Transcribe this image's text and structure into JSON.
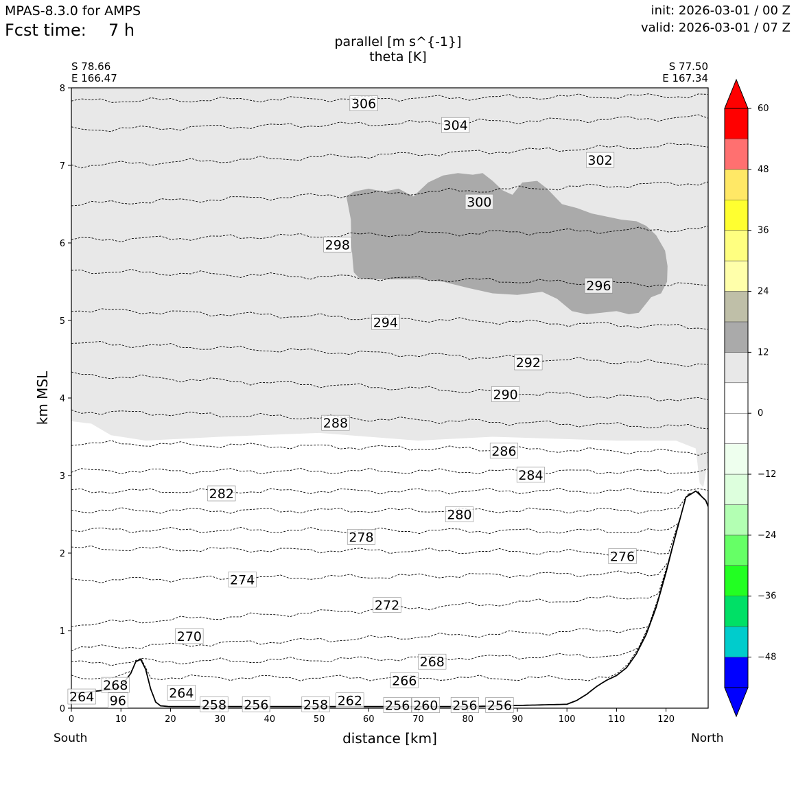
{
  "header": {
    "model": "MPAS-8.3.0 for AMPS",
    "fcst_label": "Fcst time:",
    "fcst_value": "7 h",
    "init": "init: 2026-03-01 / 00 Z",
    "valid": "valid: 2026-03-01 / 07 Z"
  },
  "endpoints": {
    "left_lat": "S 78.66",
    "left_lon": "E 166.47",
    "right_lat": "S 77.50",
    "right_lon": "E 167.34",
    "left_dir": "South",
    "right_dir": "North"
  },
  "chart_data": {
    "type": "cross-section",
    "title": "parallel [m s^{-1}]",
    "subtitle": "theta [K]",
    "xlabel": "distance [km]",
    "ylabel": "km MSL",
    "xlim": [
      0,
      128.5
    ],
    "ylim": [
      0,
      8
    ],
    "xticks": [
      0,
      10,
      20,
      30,
      40,
      50,
      60,
      70,
      80,
      90,
      100,
      110,
      120
    ],
    "yticks": [
      0,
      1,
      2,
      3,
      4,
      5,
      6,
      7,
      8
    ],
    "colorbar": {
      "levels": [
        -54,
        -48,
        -42,
        -36,
        -30,
        -24,
        -18,
        -12,
        -6,
        0,
        6,
        12,
        18,
        24,
        30,
        36,
        42,
        48,
        54,
        60
      ],
      "tick_labels": [
        "60",
        "48",
        "36",
        "24",
        "12",
        "0",
        "−12",
        "−24",
        "−36",
        "−48"
      ],
      "tick_values": [
        60,
        48,
        36,
        24,
        12,
        0,
        -12,
        -24,
        -36,
        -48
      ],
      "colors": [
        "#0000ff",
        "#00cccc",
        "#00e066",
        "#22ff22",
        "#66ff66",
        "#b3ffb3",
        "#ddffdd",
        "#eeffee",
        "#ffffff",
        "#ffffff",
        "#e8e8e8",
        "#aaaaaa",
        "#bfbfa8",
        "#ffffaa",
        "#ffff80",
        "#ffff30",
        "#ffe866",
        "#ff7070",
        "#ff0000"
      ],
      "min_color": "#0000ff",
      "max_color": "#ff0000"
    },
    "shading": [
      {
        "name": "parallel wind 6-12 m/s",
        "color": "#e8e8e8",
        "region": "above ~3.5 km"
      },
      {
        "name": "parallel wind 12-18 m/s",
        "color": "#aaaaaa",
        "region": "x 55-123 km, z 5.1-6.9 km"
      }
    ],
    "terrain": {
      "x": [
        0,
        2,
        5,
        8,
        10,
        12,
        13,
        14,
        15,
        16,
        17,
        18,
        20,
        30,
        60,
        80,
        100,
        102,
        104,
        106,
        108,
        110,
        112,
        114,
        116,
        118,
        120,
        122,
        124,
        126,
        128,
        128.5
      ],
      "z": [
        0.2,
        0.2,
        0.22,
        0.24,
        0.28,
        0.45,
        0.6,
        0.63,
        0.5,
        0.25,
        0.08,
        0.03,
        0.02,
        0.02,
        0.02,
        0.02,
        0.05,
        0.1,
        0.18,
        0.28,
        0.36,
        0.42,
        0.52,
        0.7,
        0.95,
        1.3,
        1.75,
        2.25,
        2.72,
        2.8,
        2.68,
        2.6
      ]
    },
    "theta_contours": [
      {
        "level": 306,
        "left": 7.83,
        "right": 7.9
      },
      {
        "level": 304,
        "left": 7.46,
        "right": 7.62
      },
      {
        "level": 302,
        "left": 7.0,
        "right": 7.27
      },
      {
        "level": 300,
        "left": 6.5,
        "right": 6.78
      },
      {
        "level": 298,
        "left": 6.04,
        "right": 6.18
      },
      {
        "level": 296,
        "left": 5.64,
        "right": 5.45
      },
      {
        "level": 294,
        "left": 5.14,
        "right": 4.91
      },
      {
        "level": 292,
        "left": 4.71,
        "right": 4.43
      },
      {
        "level": 290,
        "left": 4.3,
        "right": 3.97
      },
      {
        "level": 288,
        "left": 3.83,
        "right": 3.62
      },
      {
        "level": 286,
        "left": 3.42,
        "right": 3.3
      },
      {
        "level": 284,
        "left": 3.06,
        "right": 3.05
      },
      {
        "level": 282,
        "left": 2.8,
        "right": 2.8
      },
      {
        "level": 280,
        "left": 2.55,
        "right": 2.55
      },
      {
        "level": 278,
        "left": 2.3,
        "right": 2.28
      },
      {
        "level": 276,
        "left": 2.06,
        "right": 2.0
      },
      {
        "level": 274,
        "left": 1.65,
        "right": 1.75
      },
      {
        "level": 272,
        "left": 1.08,
        "right": 1.48
      },
      {
        "level": 270,
        "left": 0.77,
        "right": 1.05
      },
      {
        "level": 268,
        "left": 0.58,
        "right": 0.7
      },
      {
        "level": 266,
        "left": 0.4,
        "right": 0.38
      }
    ],
    "contour_labels": [
      {
        "text": "306",
        "x": 59,
        "z": 7.8
      },
      {
        "text": "304",
        "x": 77.5,
        "z": 7.52
      },
      {
        "text": "302",
        "x": 106.7,
        "z": 7.07
      },
      {
        "text": "300",
        "x": 82.3,
        "z": 6.53
      },
      {
        "text": "298",
        "x": 53.7,
        "z": 5.98
      },
      {
        "text": "296",
        "x": 106.4,
        "z": 5.45
      },
      {
        "text": "294",
        "x": 63.4,
        "z": 4.98
      },
      {
        "text": "292",
        "x": 92.2,
        "z": 4.46
      },
      {
        "text": "290",
        "x": 87.6,
        "z": 4.05
      },
      {
        "text": "288",
        "x": 53.3,
        "z": 3.68
      },
      {
        "text": "286",
        "x": 87.3,
        "z": 3.32
      },
      {
        "text": "284",
        "x": 92.7,
        "z": 3.01
      },
      {
        "text": "282",
        "x": 30.3,
        "z": 2.77
      },
      {
        "text": "280",
        "x": 78.3,
        "z": 2.5
      },
      {
        "text": "278",
        "x": 58.5,
        "z": 2.21
      },
      {
        "text": "276",
        "x": 111.2,
        "z": 1.96
      },
      {
        "text": "274",
        "x": 34.5,
        "z": 1.66
      },
      {
        "text": "272",
        "x": 63.7,
        "z": 1.33
      },
      {
        "text": "270",
        "x": 23.8,
        "z": 0.93
      },
      {
        "text": "268",
        "x": 72.8,
        "z": 0.6
      },
      {
        "text": "266",
        "x": 67.2,
        "z": 0.36
      },
      {
        "text": "268",
        "x": 8.9,
        "z": 0.3
      },
      {
        "text": "264",
        "x": 22.2,
        "z": 0.2
      },
      {
        "text": "264",
        "x": 2.1,
        "z": 0.15
      },
      {
        "text": "96",
        "x": 9.4,
        "z": 0.1
      },
      {
        "text": "262",
        "x": 56.2,
        "z": 0.1
      },
      {
        "text": "258",
        "x": 28.8,
        "z": 0.05
      },
      {
        "text": "256",
        "x": 37.3,
        "z": 0.05
      },
      {
        "text": "258",
        "x": 49.3,
        "z": 0.05
      },
      {
        "text": "256",
        "x": 65.8,
        "z": 0.04
      },
      {
        "text": "260",
        "x": 71.5,
        "z": 0.04
      },
      {
        "text": "256",
        "x": 79.4,
        "z": 0.04
      },
      {
        "text": "256",
        "x": 86.4,
        "z": 0.04
      }
    ]
  }
}
